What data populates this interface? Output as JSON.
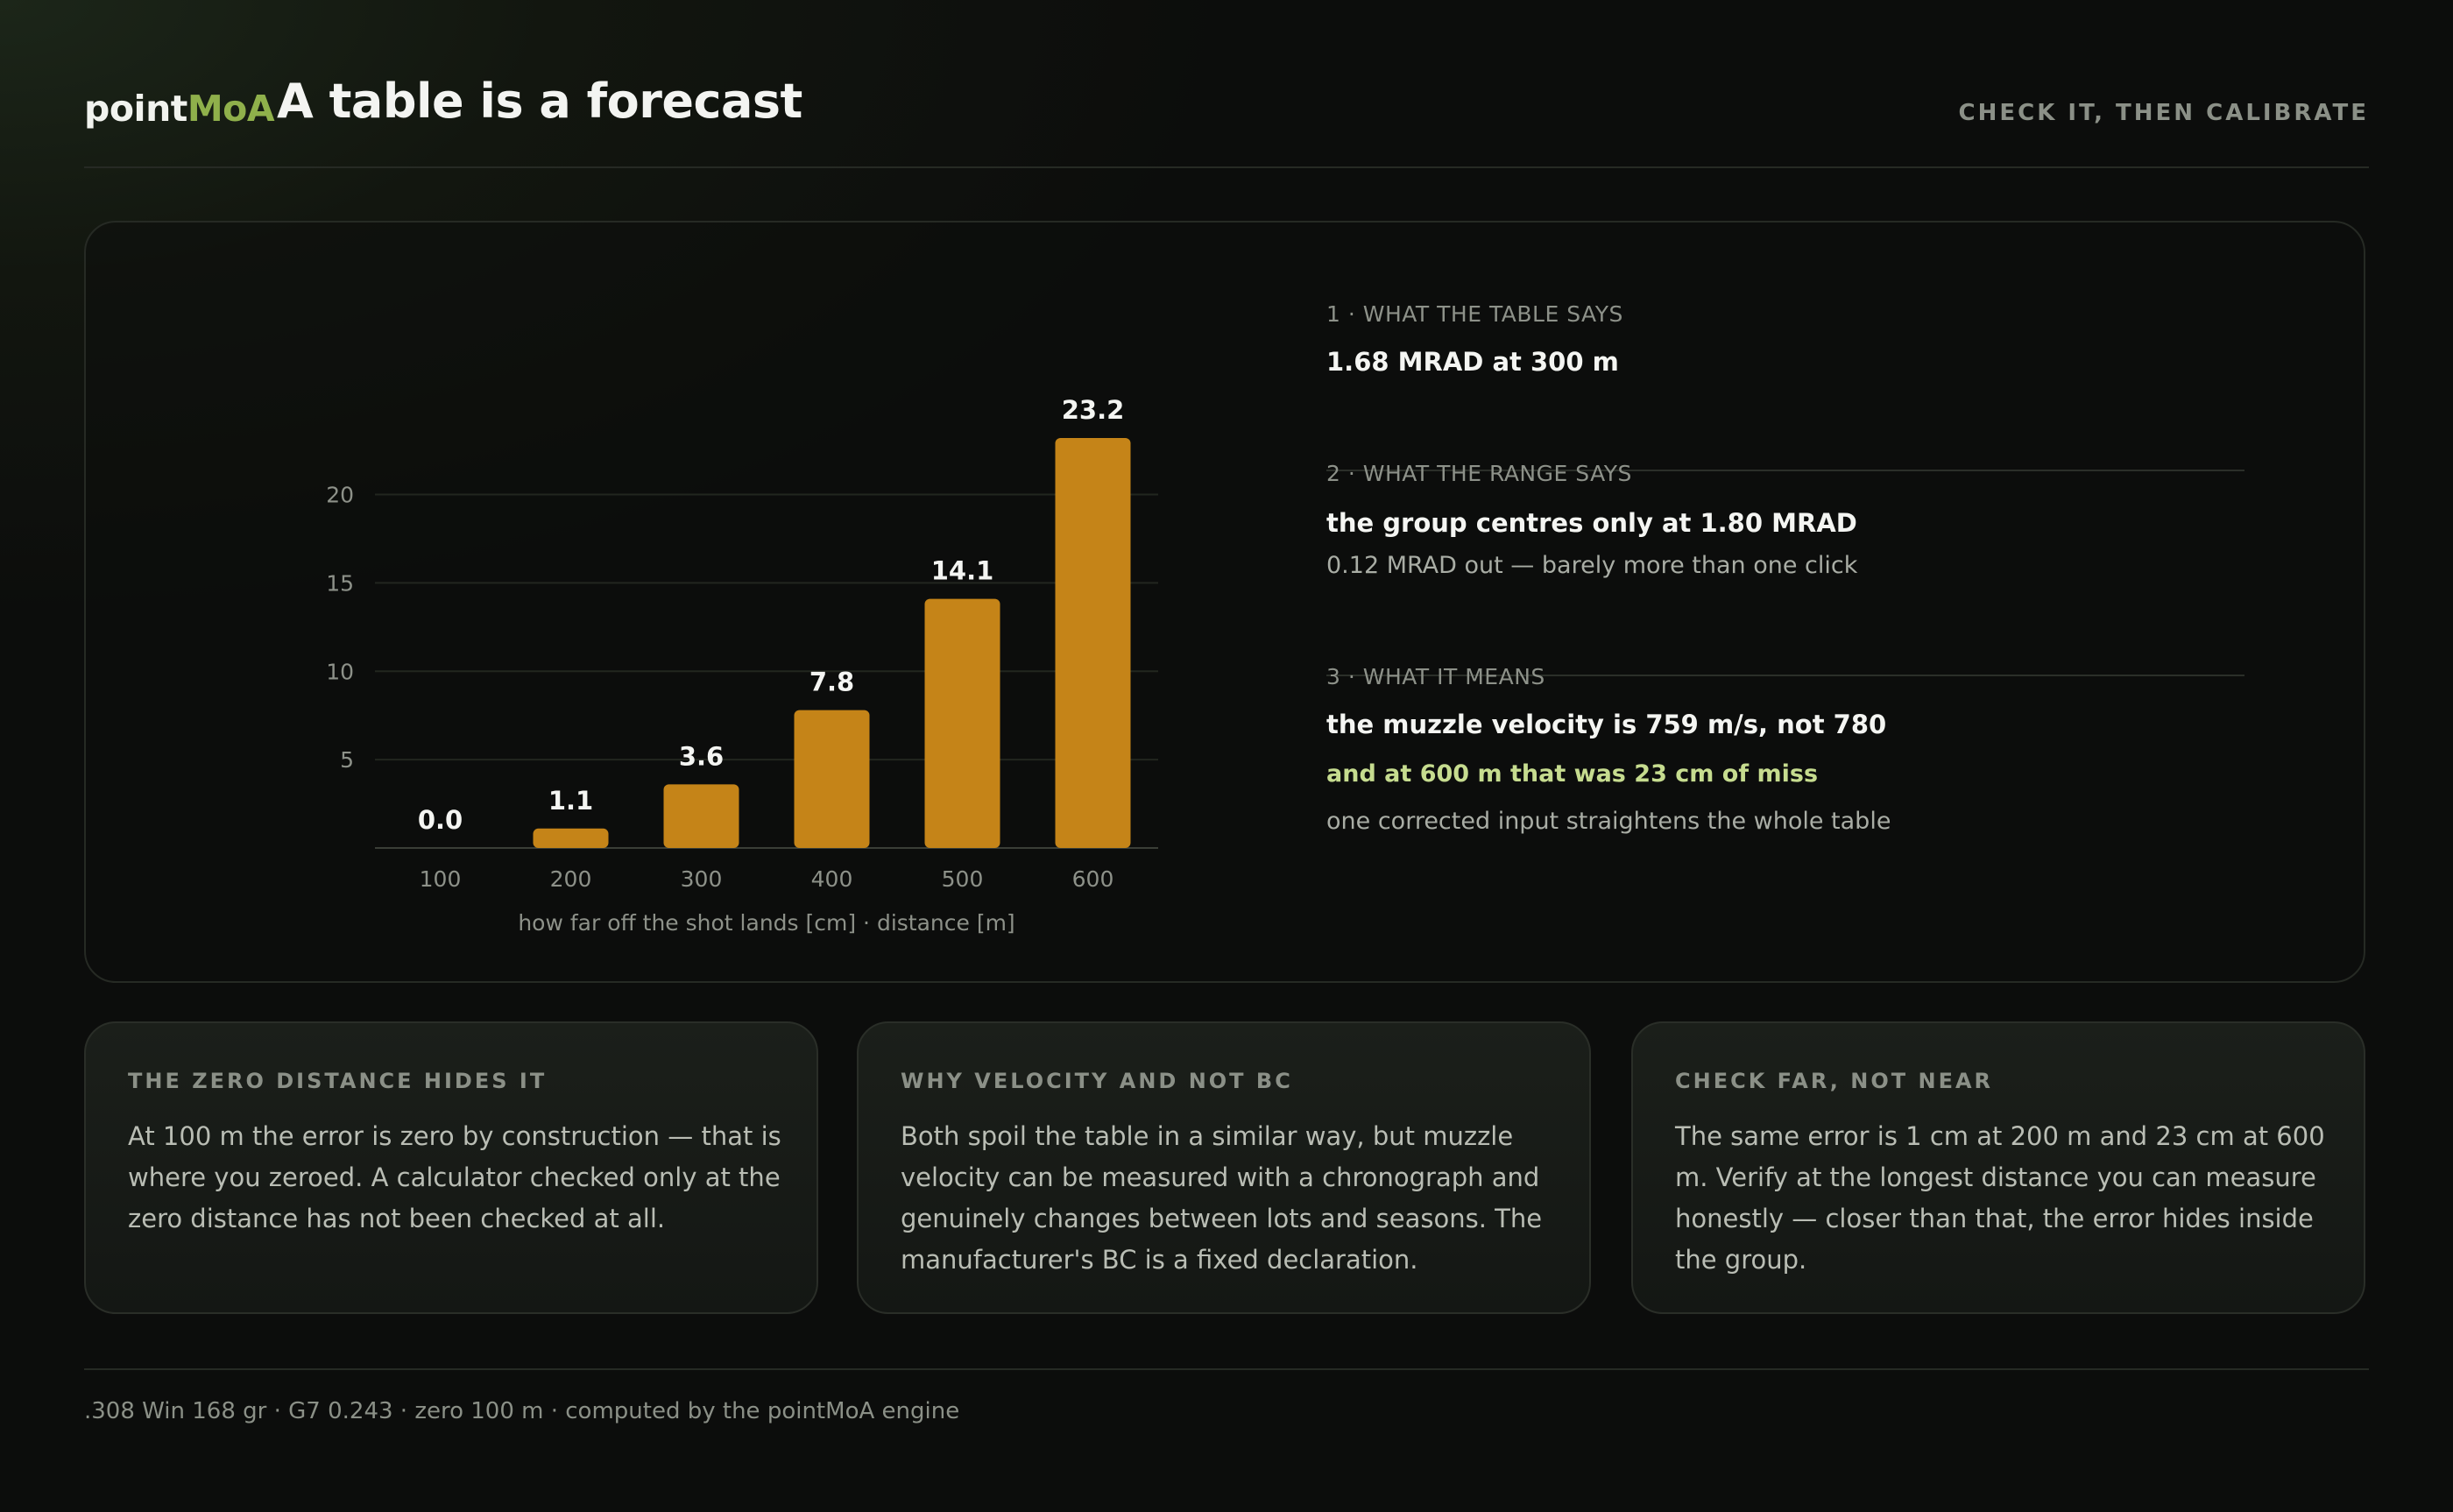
{
  "header": {
    "brand_prefix": "point",
    "brand_accent": "MoA",
    "title": "A table is a forecast",
    "tagline": "CHECK IT, THEN CALIBRATE"
  },
  "chart_data": {
    "type": "bar",
    "categories": [
      "100",
      "200",
      "300",
      "400",
      "500",
      "600"
    ],
    "values": [
      0.0,
      1.1,
      3.6,
      7.8,
      14.1,
      23.2
    ],
    "value_labels": [
      "0.0",
      "1.1",
      "3.6",
      "7.8",
      "14.1",
      "23.2"
    ],
    "xlabel": "how far off the shot lands [cm] · distance [m]",
    "ylabel": "",
    "yticks": [
      5,
      10,
      15,
      20
    ],
    "ylim": [
      0,
      23.2
    ],
    "grid": true,
    "bar_color": "#c58418"
  },
  "steps": [
    {
      "label": "1 · WHAT THE TABLE SAYS",
      "main": "1.68 MRAD at 300 m"
    },
    {
      "label": "2 · WHAT THE RANGE SAYS",
      "main": "the group centres only at 1.80 MRAD",
      "sub": "0.12 MRAD out — barely more than one click"
    },
    {
      "label": "3 · WHAT IT MEANS",
      "main": "the muzzle velocity is 759 m/s, not 780",
      "accent": "and at 600 m that was 23 cm of miss",
      "sub": "one corrected input straightens the whole table"
    }
  ],
  "cards": [
    {
      "title": "THE ZERO DISTANCE HIDES IT",
      "body": "At 100 m the error is zero by construction — that is where you zeroed. A calculator checked only at the zero distance has not been checked at all."
    },
    {
      "title": "WHY VELOCITY AND NOT BC",
      "body": "Both spoil the table in a similar way, but muzzle velocity can be measured with a chronograph and genuinely changes between lots and seasons. The manufacturer's BC is a fixed declaration."
    },
    {
      "title": "CHECK FAR, NOT NEAR",
      "body": "The same error is 1 cm at 200 m and 23 cm at 600 m. Verify at the longest distance you can measure honestly — closer than that, the error hides inside the group."
    }
  ],
  "footer": ".308 Win 168 gr · G7 0.243 · zero 100 m · computed by the pointMoA engine"
}
